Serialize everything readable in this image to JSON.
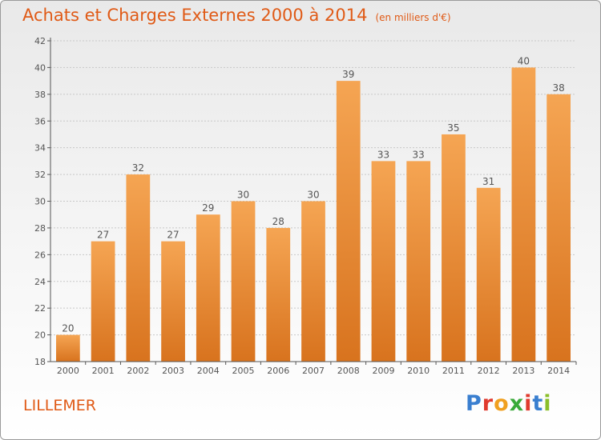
{
  "chart_data": {
    "type": "bar",
    "title": "Achats et Charges Externes 2000 à 2014",
    "subtitle": "(en milliers d'€)",
    "categories": [
      "2000",
      "2001",
      "2002",
      "2003",
      "2004",
      "2005",
      "2006",
      "2007",
      "2008",
      "2009",
      "2010",
      "2011",
      "2012",
      "2013",
      "2014"
    ],
    "values": [
      20,
      27,
      32,
      27,
      29,
      30,
      28,
      30,
      39,
      33,
      33,
      35,
      31,
      40,
      38
    ],
    "ylim": [
      18,
      42
    ],
    "yticks": [
      18,
      20,
      22,
      24,
      26,
      28,
      30,
      32,
      34,
      36,
      38,
      40,
      42
    ],
    "grid": true,
    "bar_color_top": "#f5a553",
    "bar_color_bottom": "#d8731e"
  },
  "footer": {
    "city": "LILLEMER",
    "brand": "Proxiti",
    "brand_colors": [
      "#3a7fd0",
      "#e03a2e",
      "#f0a020",
      "#3aaa3a",
      "#e03a2e",
      "#3a7fd0",
      "#8bbf2a"
    ]
  }
}
